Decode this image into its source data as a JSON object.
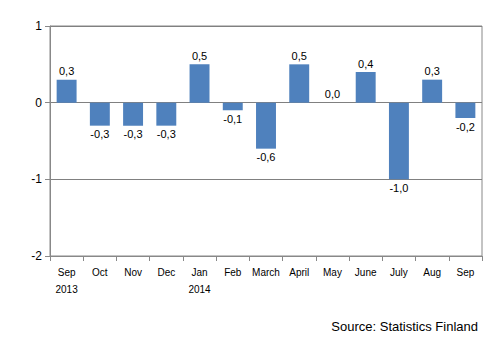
{
  "chart_data": {
    "type": "bar",
    "categories": [
      "Sep",
      "Oct",
      "Nov",
      "Dec",
      "Jan",
      "Feb",
      "March",
      "April",
      "May",
      "June",
      "July",
      "Aug",
      "Sep"
    ],
    "year_labels": [
      "2013",
      null,
      null,
      null,
      "2014",
      null,
      null,
      null,
      null,
      null,
      null,
      null,
      null
    ],
    "values": [
      0.3,
      -0.3,
      -0.3,
      -0.3,
      0.5,
      -0.1,
      -0.6,
      0.5,
      0.0,
      0.4,
      -1.0,
      0.3,
      -0.2
    ],
    "value_labels": [
      "0,3",
      "-0,3",
      "-0,3",
      "-0,3",
      "0,5",
      "-0,1",
      "-0,6",
      "0,5",
      "0,0",
      "0,4",
      "-1,0",
      "0,3",
      "-0,2"
    ],
    "data_labels": true,
    "color": "#4f81bd",
    "ylim": [
      -2,
      1
    ],
    "yticks": [
      -2,
      -1,
      0,
      1
    ],
    "grid": true,
    "source": "Source: Statistics Finland"
  }
}
